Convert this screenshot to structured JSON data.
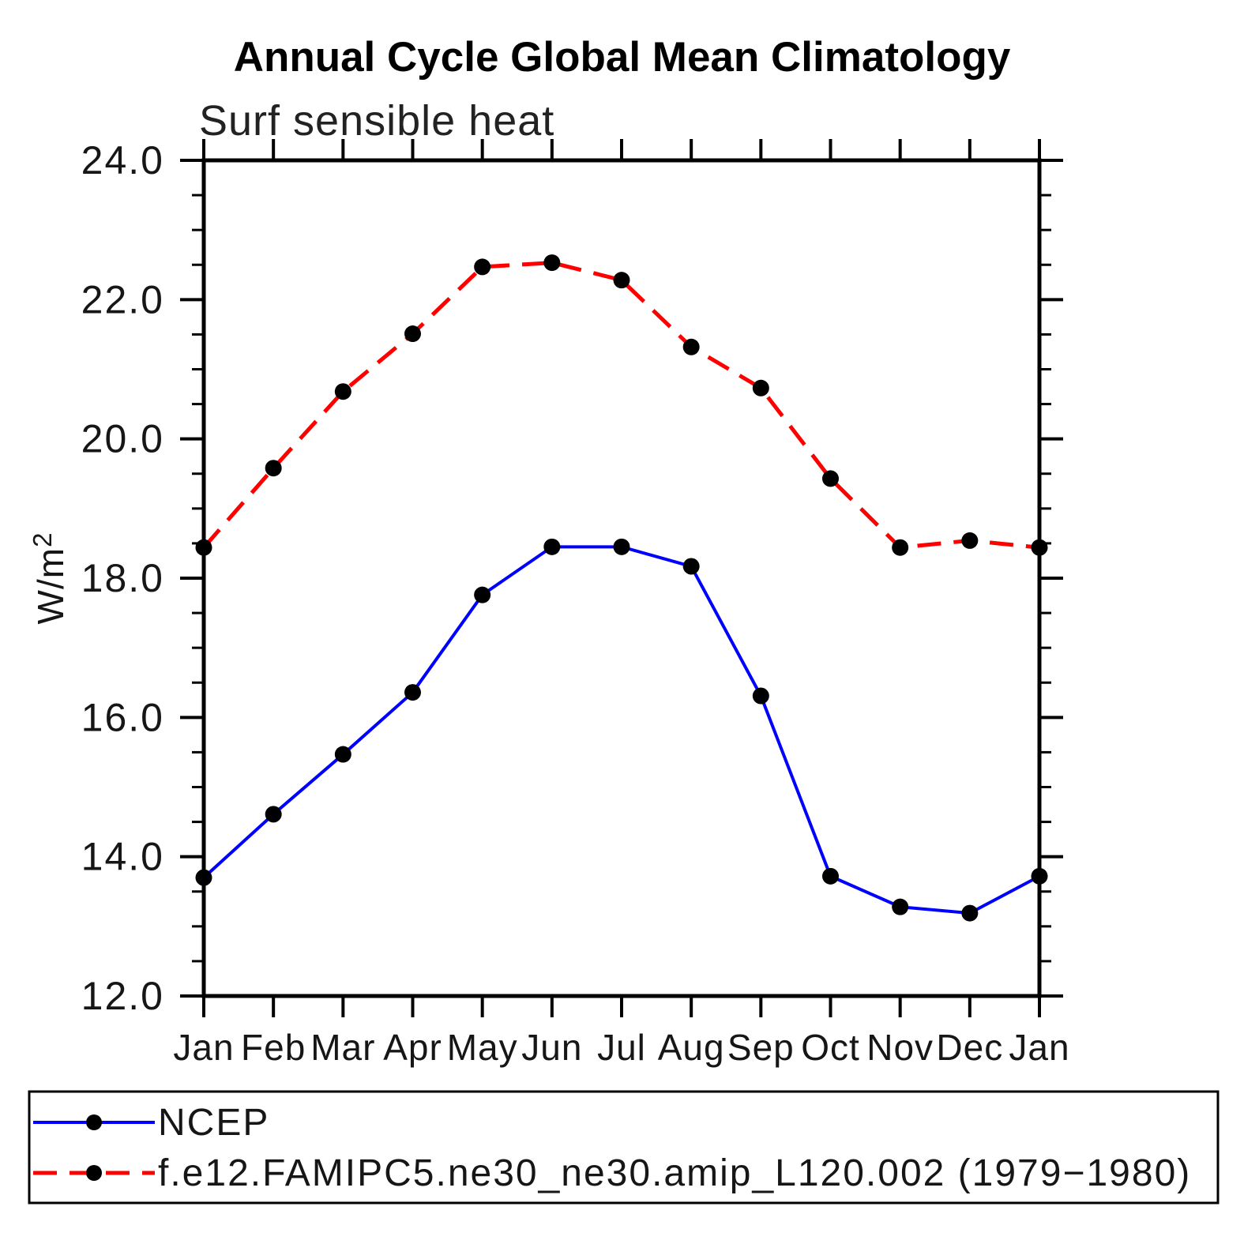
{
  "header": {
    "title": "Annual Cycle Global Mean Climatology",
    "subtitle": "Surf sensible heat"
  },
  "chart_data": {
    "type": "line",
    "title": "Annual Cycle Global Mean Climatology",
    "subtitle": "Surf sensible heat",
    "xlabel": "",
    "ylabel": "W/m²",
    "ylabel_base": "W/m",
    "ylabel_exponent": "2",
    "categories": [
      "Jan",
      "Feb",
      "Mar",
      "Apr",
      "May",
      "Jun",
      "Jul",
      "Aug",
      "Sep",
      "Oct",
      "Nov",
      "Dec",
      "Jan"
    ],
    "ylim": [
      12.0,
      24.0
    ],
    "ytick_interval": 2.0,
    "yminor_interval": 0.5,
    "ytick_labels": [
      "12.0",
      "14.0",
      "16.0",
      "18.0",
      "20.0",
      "22.0",
      "24.0"
    ],
    "grid": false,
    "legend_position": "bottom-left-box",
    "series": [
      {
        "name": "NCEP",
        "color": "#0000ff",
        "line_style": "solid",
        "marker": "filled-circle",
        "marker_color": "#000000",
        "values": [
          13.7,
          14.61,
          15.47,
          16.36,
          17.76,
          18.45,
          18.45,
          18.17,
          16.31,
          13.72,
          13.28,
          13.19,
          13.72
        ]
      },
      {
        "name": "f.e12.FAMIPC5.ne30_ne30.amip_L120.002 (1979−1980)",
        "color": "#ff0000",
        "line_style": "dashed",
        "marker": "filled-circle",
        "marker_color": "#000000",
        "values": [
          18.44,
          19.58,
          20.68,
          21.51,
          22.47,
          22.53,
          22.28,
          21.32,
          20.73,
          19.43,
          18.44,
          18.54,
          18.44
        ]
      }
    ]
  },
  "colors": {
    "background": "#ffffff",
    "axis": "#000000",
    "ncep_line": "#0000ff",
    "model_line": "#ff0000",
    "marker": "#000000"
  }
}
